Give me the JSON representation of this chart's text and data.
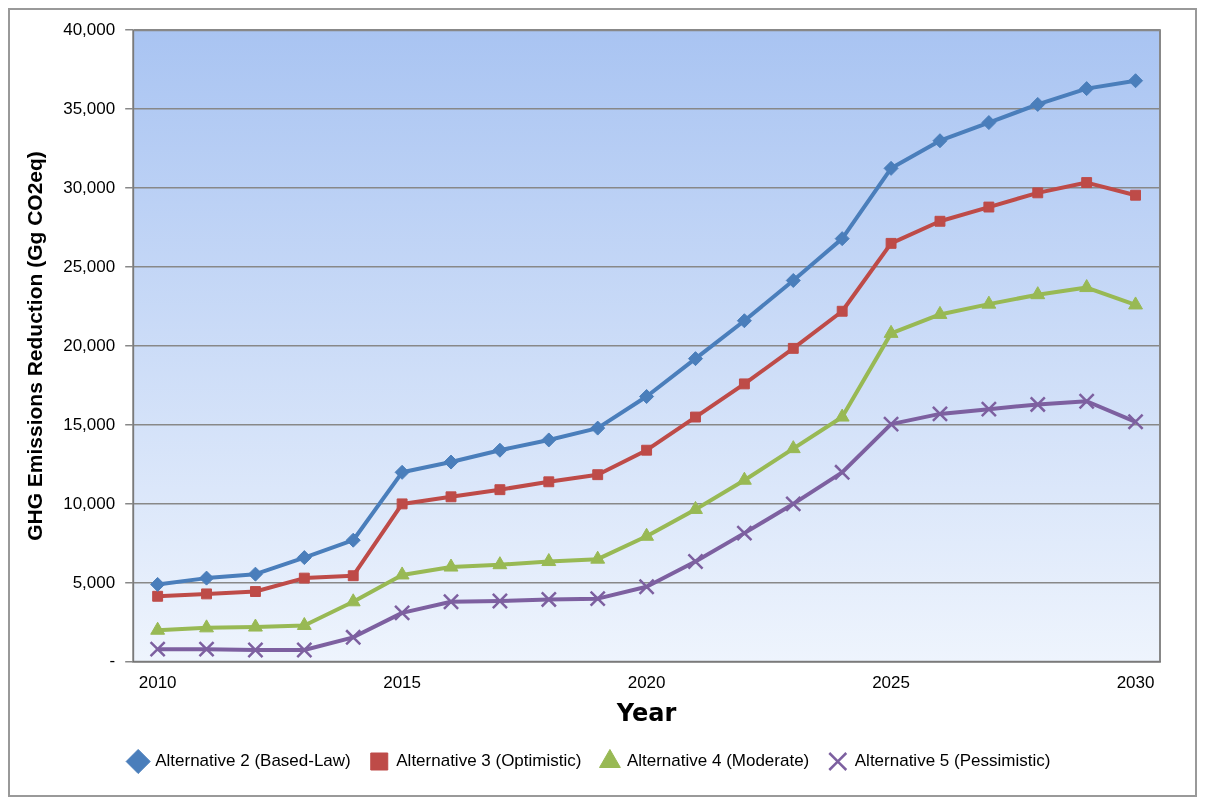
{
  "chart_data": {
    "type": "line",
    "xlabel": "Year",
    "ylabel": "GHG Emissions Reduction (Gg CO2eq)",
    "x": [
      2010,
      2011,
      2012,
      2013,
      2014,
      2015,
      2016,
      2017,
      2018,
      2019,
      2020,
      2021,
      2022,
      2023,
      2024,
      2025,
      2026,
      2027,
      2028,
      2029,
      2030
    ],
    "xlim": [
      2009.5,
      2030.5
    ],
    "xticks": [
      2010,
      2015,
      2020,
      2025,
      2030
    ],
    "ylim": [
      0,
      40000
    ],
    "yticks": [
      {
        "value": 0,
        "label": "-"
      },
      {
        "value": 5000,
        "label": "5,000"
      },
      {
        "value": 10000,
        "label": "10,000"
      },
      {
        "value": 15000,
        "label": "15,000"
      },
      {
        "value": 20000,
        "label": "20,000"
      },
      {
        "value": 25000,
        "label": "25,000"
      },
      {
        "value": 30000,
        "label": "30,000"
      },
      {
        "value": 35000,
        "label": "35,000"
      },
      {
        "value": 40000,
        "label": "40,000"
      }
    ],
    "grid": "y",
    "legend": "bottom",
    "line_style": "solid",
    "series": [
      {
        "name": "Alternative 2 (Based-Law)",
        "color": "#4a7ebb",
        "marker": "diamond",
        "values": [
          4900,
          5300,
          5550,
          6600,
          7700,
          12000,
          12650,
          13400,
          14050,
          14800,
          16800,
          19200,
          21600,
          24150,
          26800,
          31250,
          33000,
          34150,
          35300,
          36300,
          36800
        ]
      },
      {
        "name": "Alternative 3 (Optimistic)",
        "color": "#be4b48",
        "marker": "square",
        "values": [
          4150,
          4300,
          4450,
          5300,
          5450,
          10000,
          10450,
          10900,
          11400,
          11850,
          13400,
          15500,
          17600,
          19850,
          22200,
          26500,
          27900,
          28800,
          29700,
          30350,
          29550
        ]
      },
      {
        "name": "Alternative 4 (Moderate)",
        "color": "#98b954",
        "marker": "triangle",
        "values": [
          2000,
          2150,
          2200,
          2300,
          3800,
          5500,
          6000,
          6150,
          6350,
          6500,
          7950,
          9650,
          11500,
          13500,
          15500,
          20800,
          22000,
          22650,
          23250,
          23700,
          22600
        ]
      },
      {
        "name": "Alternative 5 (Pessimistic)",
        "color": "#7d60a0",
        "marker": "cross",
        "values": [
          800,
          800,
          750,
          750,
          1550,
          3100,
          3800,
          3850,
          3950,
          4000,
          4750,
          6350,
          8150,
          10000,
          12000,
          15050,
          15700,
          16000,
          16300,
          16500,
          15200
        ]
      }
    ]
  }
}
